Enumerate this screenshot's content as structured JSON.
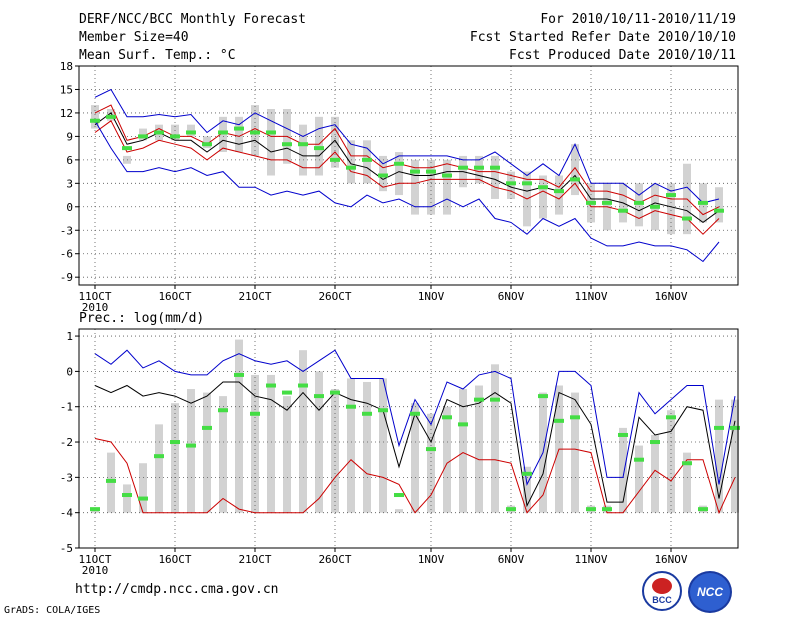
{
  "header": {
    "title": "DERF/NCC/BCC Monthly Forecast",
    "member_size": "Member Size=40",
    "variable": "Mean Surf. Temp.: °C",
    "period": "For 2010/10/11-2010/11/19",
    "started": "Fcst Started Refer Date 2010/10/10",
    "produced": "Fcst Produced Date 2010/10/11"
  },
  "footer": {
    "url": "http://cmdp.ncc.cma.gov.cn",
    "grads": "GrADS: COLA/IGES",
    "logo_left": "BCC",
    "logo_right": "NCC"
  },
  "colors": {
    "grid": "#555555",
    "bar": "#d2d2d2",
    "green": "#44dd44",
    "blue": "#0000cc",
    "red": "#cc0000",
    "black": "#000000"
  },
  "chart_data": [
    {
      "type": "line",
      "title": "Mean Surf. Temp.: °C",
      "ylim": [
        -10,
        18
      ],
      "yticks": [
        -9,
        -6,
        -3,
        0,
        3,
        6,
        9,
        12,
        15,
        18
      ],
      "xticks": [
        {
          "i": 0,
          "label": "11OCT"
        },
        {
          "i": 5,
          "label": "16OCT"
        },
        {
          "i": 10,
          "label": "21OCT"
        },
        {
          "i": 15,
          "label": "26OCT"
        },
        {
          "i": 21,
          "label": "1NOV"
        },
        {
          "i": 26,
          "label": "6NOV"
        },
        {
          "i": 31,
          "label": "11NOV"
        },
        {
          "i": 36,
          "label": "16NOV"
        }
      ],
      "year_label": "2010",
      "x": [
        "10/11",
        "10/12",
        "10/13",
        "10/14",
        "10/15",
        "10/16",
        "10/17",
        "10/18",
        "10/19",
        "10/20",
        "10/21",
        "10/22",
        "10/23",
        "10/24",
        "10/25",
        "10/26",
        "10/27",
        "10/28",
        "10/29",
        "10/30",
        "10/31",
        "11/01",
        "11/02",
        "11/03",
        "11/04",
        "11/05",
        "11/06",
        "11/07",
        "11/08",
        "11/09",
        "11/10",
        "11/11",
        "11/12",
        "11/13",
        "11/14",
        "11/15",
        "11/16",
        "11/17",
        "11/18",
        "11/19"
      ],
      "series": [
        {
          "name": "max",
          "color": "blue",
          "values": [
            14,
            15,
            11.5,
            11.5,
            11.8,
            11.5,
            11.8,
            9.5,
            11,
            10.5,
            12,
            11,
            10,
            9,
            10,
            10.5,
            8,
            7.5,
            5.5,
            6.5,
            6.5,
            6.5,
            6.5,
            6,
            6,
            7,
            5.5,
            4,
            5.5,
            4,
            8,
            3,
            3,
            3,
            1.5,
            3,
            2,
            2.5,
            0.5,
            1
          ]
        },
        {
          "name": "red_upper",
          "color": "red",
          "values": [
            12,
            13,
            8.5,
            9,
            10,
            9,
            9,
            8,
            9.5,
            9,
            10,
            9,
            9,
            8,
            8,
            10,
            6.5,
            6.5,
            5,
            5.5,
            5,
            5,
            5.5,
            5,
            4.5,
            4.5,
            4,
            3.5,
            3.5,
            2.5,
            5,
            2,
            2,
            1.5,
            0.5,
            1.5,
            1,
            1,
            -1,
            0
          ]
        },
        {
          "name": "ensemble_mean",
          "color": "black",
          "values": [
            10.5,
            12,
            8,
            8.5,
            9.5,
            8.5,
            8.5,
            7,
            8.5,
            8,
            8.5,
            7,
            7.5,
            6.5,
            6.5,
            8.5,
            5.5,
            5,
            3.5,
            4.5,
            4,
            4,
            4.5,
            4.5,
            4,
            3.5,
            2.5,
            2,
            2.5,
            2,
            4,
            1,
            1,
            0.5,
            -0.5,
            0.5,
            0,
            -0.5,
            -2,
            -0.5
          ]
        },
        {
          "name": "red_lower",
          "color": "red",
          "values": [
            9.5,
            11,
            7,
            7.5,
            8.5,
            8,
            7.5,
            6,
            7.5,
            7,
            6.5,
            6,
            6,
            5,
            5,
            7,
            4.5,
            4,
            2.5,
            3,
            3,
            3.5,
            3.5,
            3.5,
            3.5,
            2.5,
            2,
            1,
            2,
            1,
            3,
            0,
            0,
            -0.5,
            -1.5,
            -0.5,
            -1,
            -1.5,
            -3.5,
            -1.5
          ]
        },
        {
          "name": "min",
          "color": "blue",
          "values": [
            11,
            7.5,
            4.5,
            4.5,
            5,
            4.5,
            5,
            4,
            4.5,
            2.5,
            2.5,
            1.5,
            2,
            1.5,
            2,
            0.5,
            0,
            1.5,
            0.5,
            1,
            0,
            0,
            1,
            0,
            1,
            -1.5,
            -2,
            -3.5,
            -1.5,
            -2.5,
            -1.5,
            -4,
            -5,
            -5,
            -4.5,
            -5,
            -5,
            -5.5,
            -7,
            -4.5
          ]
        },
        {
          "name": "observed_marker",
          "color": "green",
          "values": [
            11,
            11.5,
            7.5,
            9,
            9.5,
            9,
            9.5,
            8,
            9.5,
            10,
            9.5,
            9.5,
            8,
            8,
            7.5,
            6,
            5,
            6,
            4,
            5.5,
            4.5,
            4.5,
            4,
            5,
            5,
            5,
            3,
            3,
            2.5,
            2,
            3.5,
            0.5,
            0.5,
            -0.5,
            0.5,
            0,
            1.5,
            -1.5,
            0.5,
            -0.5
          ]
        }
      ],
      "bars_high": [
        13,
        12.5,
        6.5,
        10,
        10.5,
        10.5,
        10.5,
        9,
        11.5,
        11.5,
        13,
        12.5,
        12.5,
        10.5,
        11.5,
        11.5,
        8.5,
        8.5,
        6.5,
        7,
        6,
        6,
        6,
        6.5,
        6.5,
        6.5,
        4.5,
        4.5,
        4,
        4,
        8,
        3,
        3,
        3,
        3,
        3,
        3,
        5.5,
        3,
        2.5
      ],
      "bars_low": [
        10,
        11,
        5.5,
        8.5,
        8.5,
        8.5,
        9,
        7.5,
        7,
        7,
        6.5,
        4,
        5.5,
        4,
        4,
        5,
        3,
        3,
        2,
        1.5,
        -1,
        -1,
        -1,
        2.5,
        3,
        1,
        1,
        -2.5,
        -1.5,
        -1,
        1.5,
        -2,
        -3,
        -2,
        -2.5,
        -3,
        -3.5,
        -3.5,
        -2,
        -2
      ]
    },
    {
      "type": "line",
      "title": "Prec.: log(mm/d)",
      "ylim": [
        -5,
        1.2
      ],
      "yticks": [
        -5,
        -4,
        -3,
        -2,
        -1,
        0,
        1
      ],
      "xticks": [
        {
          "i": 0,
          "label": "11OCT"
        },
        {
          "i": 5,
          "label": "16OCT"
        },
        {
          "i": 10,
          "label": "21OCT"
        },
        {
          "i": 15,
          "label": "26OCT"
        },
        {
          "i": 21,
          "label": "1NOV"
        },
        {
          "i": 26,
          "label": "6NOV"
        },
        {
          "i": 31,
          "label": "11NOV"
        },
        {
          "i": 36,
          "label": "16NOV"
        }
      ],
      "year_label": "2010",
      "series": [
        {
          "name": "max",
          "color": "blue",
          "values": [
            0.5,
            0.2,
            0.6,
            0.1,
            0.3,
            0,
            -0.1,
            -0.1,
            0.3,
            0.5,
            0.3,
            0.2,
            0.3,
            0,
            0.3,
            0.6,
            -0.2,
            -0.2,
            -0.2,
            -2.1,
            -0.8,
            -1.5,
            -0.3,
            -0.5,
            -0.1,
            0,
            -0.2,
            -3.2,
            -2.3,
            0,
            0,
            -0.4,
            -3,
            -3,
            -0.6,
            -1.2,
            -0.8,
            -0.4,
            -0.4,
            -3.2,
            -0.7
          ]
        },
        {
          "name": "ensemble_mean",
          "color": "black",
          "values": [
            -0.4,
            -0.6,
            -0.4,
            -0.7,
            -0.6,
            -0.7,
            -0.9,
            -0.7,
            -0.3,
            -0.3,
            -0.7,
            -0.8,
            -1.1,
            -0.6,
            -1.1,
            -0.6,
            -0.8,
            -0.9,
            -1.1,
            -2.7,
            -1.2,
            -2,
            -0.8,
            -1,
            -0.9,
            -0.6,
            -0.9,
            -3.8,
            -2.9,
            -0.6,
            -0.8,
            -1.5,
            -3.7,
            -3.7,
            -1.3,
            -1.8,
            -1.7,
            -1,
            -1.1,
            -3.6,
            -1.4
          ]
        },
        {
          "name": "red_lower",
          "color": "red",
          "values": [
            -1.9,
            -2,
            -2.6,
            -4,
            -4,
            -4,
            -4,
            -4,
            -3.6,
            -3.9,
            -4,
            -4,
            -4,
            -4,
            -3.6,
            -3,
            -2.5,
            -2.9,
            -3,
            -3.2,
            -4,
            -3.5,
            -2.6,
            -2.3,
            -2.5,
            -2.5,
            -2.6,
            -4,
            -3.5,
            -2.2,
            -2.2,
            -2.3,
            -4,
            -4,
            -3.4,
            -2.8,
            -3.1,
            -2.5,
            -2.5,
            -4,
            -3
          ]
        },
        {
          "name": "observed_marker",
          "color": "green",
          "values": [
            -3.9,
            -3.1,
            -3.5,
            -3.6,
            -2.4,
            -2,
            -2.1,
            -1.6,
            -1.1,
            -0.1,
            -1.2,
            -0.4,
            -0.6,
            -0.4,
            -0.7,
            -0.6,
            -1,
            -1.2,
            -1.1,
            -3.5,
            -1.2,
            -2.2,
            -1.3,
            -1.5,
            -0.8,
            -0.8,
            -3.9,
            -2.9,
            -0.7,
            -1.4,
            -1.3,
            -3.9,
            -3.9,
            -1.8,
            -2.5,
            -2,
            -1.3,
            -2.6,
            -3.9,
            -1.6,
            -1.6
          ]
        }
      ],
      "bars_high": [
        -3.9,
        -2.3,
        -3.2,
        -2.6,
        -1.5,
        -0.9,
        -0.5,
        -0.6,
        -0.7,
        0.9,
        -0.1,
        -0.1,
        -0.7,
        0.6,
        0,
        -0.5,
        -0.2,
        -0.3,
        -0.2,
        -3.9,
        -0.9,
        -1.2,
        -1,
        -0.5,
        -0.4,
        0.2,
        -3.8,
        -2.7,
        -0.6,
        -0.4,
        -0.6,
        -3.8,
        -3.8,
        -1.6,
        -2.1,
        -1.8,
        -1.1,
        -2.3,
        -3.8,
        -0.8,
        -0.8
      ],
      "bars_low": [
        -4,
        -4,
        -4,
        -4,
        -4,
        -4,
        -4,
        -4,
        -4,
        -4,
        -4,
        -4,
        -4,
        -4,
        -4,
        -4,
        -4,
        -4,
        -4,
        -4,
        -4,
        -4,
        -4,
        -4,
        -4,
        -4,
        -4,
        -4,
        -4,
        -4,
        -4,
        -4,
        -4,
        -4,
        -4,
        -4,
        -4,
        -4,
        -4,
        -4,
        -4
      ]
    }
  ]
}
